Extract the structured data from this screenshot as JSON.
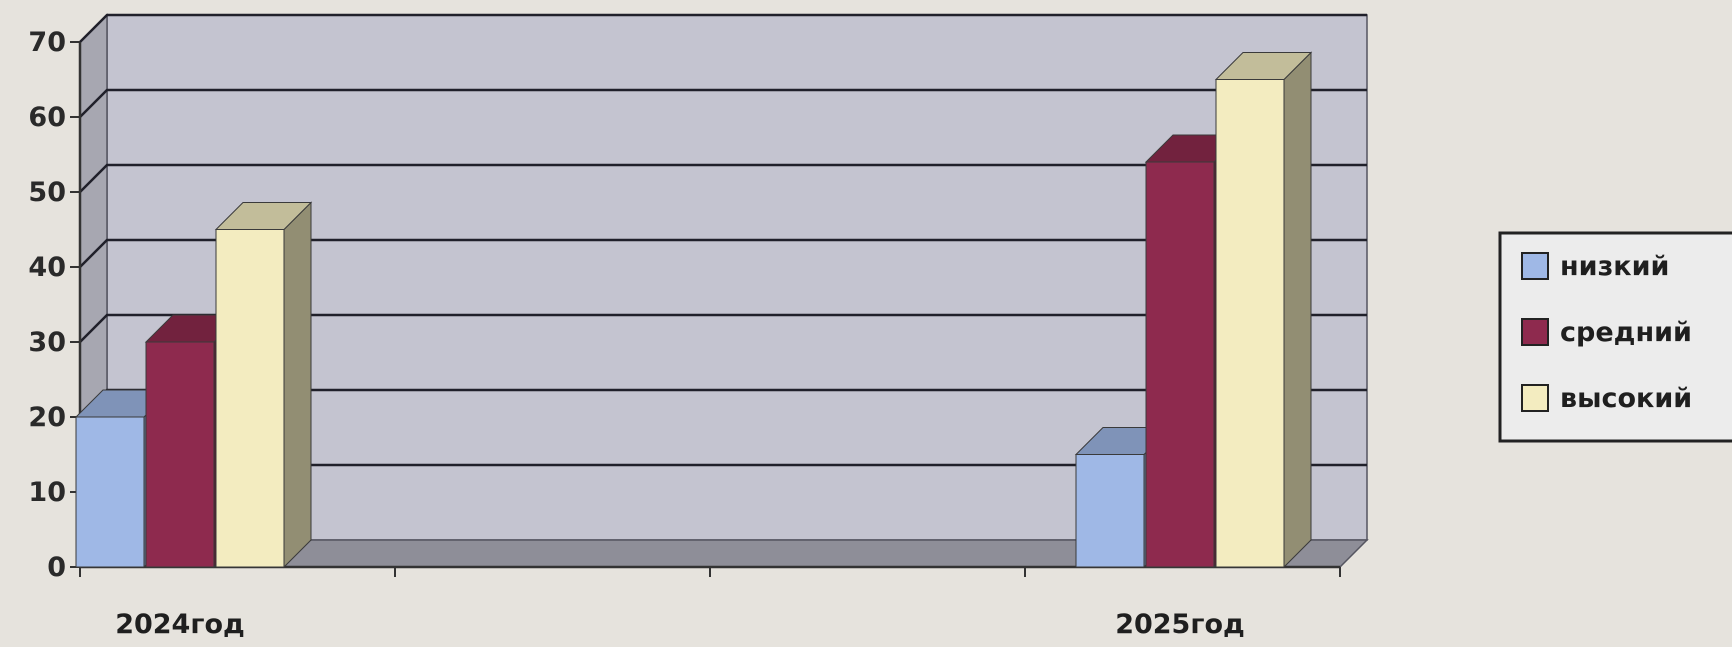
{
  "chart_data": {
    "type": "bar",
    "title": "",
    "xlabel": "",
    "ylabel": "",
    "categories": [
      "2024год",
      "2025год"
    ],
    "series": [
      {
        "name": "низкий",
        "values": [
          20,
          15
        ]
      },
      {
        "name": "средний",
        "values": [
          30,
          54
        ]
      },
      {
        "name": "высокий",
        "values": [
          45,
          65
        ]
      }
    ],
    "ylim": [
      0,
      70
    ],
    "yticks": [
      "0",
      "10",
      "20",
      "30",
      "40",
      "50",
      "60",
      "70"
    ],
    "grid": true,
    "three_d": true,
    "legend_position": "right",
    "colors": {
      "низкий": "#9fb8e6",
      "средний": "#8e2a4e",
      "высокий": "#f3ecc0",
      "wall": "#c4c4d0",
      "floor": "#8e8e98",
      "gridline": "#20202a"
    }
  }
}
